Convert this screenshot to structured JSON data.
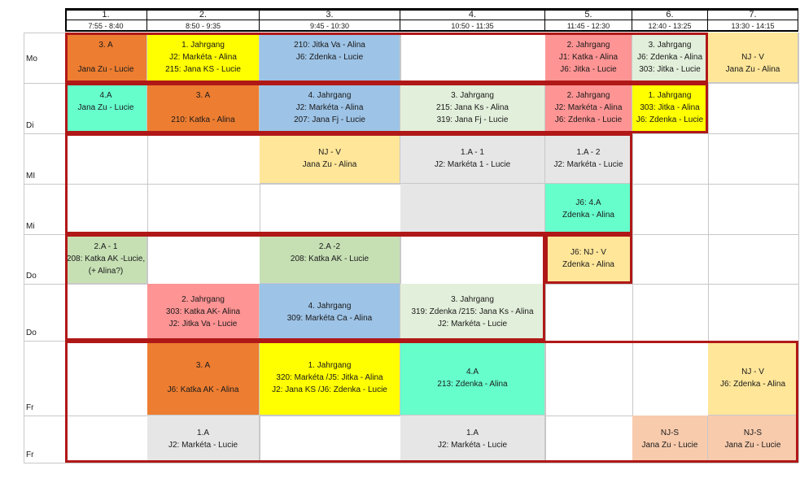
{
  "colors": {
    "orange": "#ed7d31",
    "yellow": "#ffff00",
    "blue": "#9dc3e6",
    "salmon": "#ff9494",
    "light_green": "#e2efda",
    "pale_orange": "#ffe699",
    "mint": "#66ffcc",
    "grey": "#e7e6e6",
    "sage": "#c6e0b4",
    "peach": "#f8cbad",
    "frame": "#b01818"
  },
  "periods": [
    {
      "num": "1.",
      "time": "7:55 - 8:40"
    },
    {
      "num": "2.",
      "time": "8:50 - 9:35"
    },
    {
      "num": "3.",
      "time": "9:45 - 10:30"
    },
    {
      "num": "4.",
      "time": "10:50 - 11:35"
    },
    {
      "num": "5.",
      "time": "11:45 - 12:30"
    },
    {
      "num": "6.",
      "time": "12:40 - 13:25"
    },
    {
      "num": "7.",
      "time": "13:30 - 14:15"
    }
  ],
  "days": [
    "Mo",
    "Di",
    "MI",
    "Mi",
    "Do",
    "Do",
    "Fr",
    "Fr"
  ],
  "cells": [
    {
      "row": 0,
      "col": 0,
      "color": "orange",
      "lines": [
        "3. A",
        "",
        "Jana Zu - Lucie"
      ]
    },
    {
      "row": 0,
      "col": 1,
      "color": "yellow",
      "lines": [
        "1. Jahrgang",
        "J2: Markéta  - Alina",
        "215: Jana KS - Lucie"
      ]
    },
    {
      "row": 0,
      "col": 2,
      "color": "blue",
      "lines": [
        "210: Jitka Va - Alina",
        "J6: Zdenka - Lucie",
        ""
      ]
    },
    {
      "row": 0,
      "col": 4,
      "color": "salmon",
      "lines": [
        "2. Jahrgang",
        "J1: Katka - Alina",
        "J6: Jitka - Lucie"
      ]
    },
    {
      "row": 0,
      "col": 5,
      "color": "light_green",
      "lines": [
        "3. Jahrgang",
        "J6: Zdenka - Alina",
        "303: Jitka - Lucie"
      ]
    },
    {
      "row": 0,
      "col": 6,
      "color": "pale_orange",
      "lines": [
        "",
        "NJ - V",
        "Jana Zu - Alina"
      ]
    },
    {
      "row": 1,
      "col": 0,
      "color": "mint",
      "lines": [
        "4.A",
        "Jana Zu - Lucie",
        ""
      ]
    },
    {
      "row": 1,
      "col": 1,
      "color": "orange",
      "lines": [
        "3. A",
        "",
        "210: Katka - Alina"
      ]
    },
    {
      "row": 1,
      "col": 2,
      "color": "blue",
      "lines": [
        "4. Jahrgang",
        "J2: Markéta   - Alina",
        "207: Jana Fj  - Lucie"
      ]
    },
    {
      "row": 1,
      "col": 3,
      "color": "light_green",
      "lines": [
        "3. Jahrgang",
        "215: Jana Ks - Alina",
        "319: Jana Fj - Lucie"
      ]
    },
    {
      "row": 1,
      "col": 4,
      "color": "salmon",
      "lines": [
        "2. Jahrgang",
        "J2: Markéta - Alina",
        "J6: Zdenka - Lucie"
      ]
    },
    {
      "row": 1,
      "col": 5,
      "color": "yellow",
      "lines": [
        "1. Jahrgang",
        "303: Jitka - Alina",
        "J6: Zdenka - Lucie"
      ]
    },
    {
      "row": 2,
      "col": 2,
      "color": "pale_orange",
      "lines": [
        "NJ - V",
        "Jana Zu - Alina"
      ]
    },
    {
      "row": 2,
      "col": 3,
      "color": "grey",
      "lines": [
        "1.A - 1",
        "J2: Markéta 1 - Lucie"
      ]
    },
    {
      "row": 2,
      "col": 4,
      "color": "grey",
      "lines": [
        "1.A - 2",
        "J2: Markéta - Lucie"
      ]
    },
    {
      "row": 3,
      "col": 3,
      "color": "grey",
      "lines": []
    },
    {
      "row": 3,
      "col": 4,
      "color": "mint",
      "lines": [
        "J6: 4.A",
        "Zdenka - Alina"
      ]
    },
    {
      "row": 4,
      "col": 0,
      "color": "sage",
      "lines": [
        "2.A - 1",
        "208: Katka AK -Lucie,",
        "(+ Alina?)"
      ]
    },
    {
      "row": 4,
      "col": 2,
      "color": "sage",
      "lines": [
        "2.A -2",
        "208: Katka AK - Lucie",
        ""
      ]
    },
    {
      "row": 4,
      "col": 4,
      "color": "pale_orange",
      "lines": [
        "J6: NJ - V",
        "Zdenka - Alina"
      ]
    },
    {
      "row": 5,
      "col": 1,
      "color": "salmon",
      "lines": [
        "2. Jahrgang",
        "303: Katka AK- Alina",
        "J2: Jitka Va - Lucie"
      ]
    },
    {
      "row": 5,
      "col": 2,
      "color": "blue",
      "lines": [
        "4. Jahrgang",
        "309: Markéta Ca - Alina"
      ]
    },
    {
      "row": 5,
      "col": 3,
      "color": "light_green",
      "lines": [
        "3. Jahrgang",
        "319: Zdenka /215: Jana Ks  - Alina",
        "J2: Markéta - Lucie"
      ]
    },
    {
      "row": 6,
      "col": 1,
      "color": "orange",
      "lines": [
        "3. A",
        "",
        "J6: Katka AK - Alina"
      ]
    },
    {
      "row": 6,
      "col": 2,
      "color": "yellow",
      "lines": [
        "1. Jahrgang",
        "320:  Markéta /J5: Jitka  - Alina",
        "J2: Jana KS /J6: Zdenka - Lucie"
      ]
    },
    {
      "row": 6,
      "col": 3,
      "color": "mint",
      "lines": [
        "4.A",
        "213: Zdenka - Alina"
      ]
    },
    {
      "row": 6,
      "col": 6,
      "color": "pale_orange",
      "lines": [
        "NJ - V",
        "J6: Zdenka - Alina"
      ]
    },
    {
      "row": 7,
      "col": 1,
      "color": "grey",
      "lines": [
        "1.A",
        "J2: Markéta - Lucie"
      ]
    },
    {
      "row": 7,
      "col": 3,
      "color": "grey",
      "lines": [
        "1.A",
        "J2: Markéta - Lucie"
      ]
    },
    {
      "row": 7,
      "col": 5,
      "color": "peach",
      "lines": [
        "NJ-S",
        "Jana Zu - Lucie"
      ]
    },
    {
      "row": 7,
      "col": 6,
      "color": "peach",
      "lines": [
        "NJ-S",
        "Jana Zu - Lucie"
      ]
    }
  ]
}
